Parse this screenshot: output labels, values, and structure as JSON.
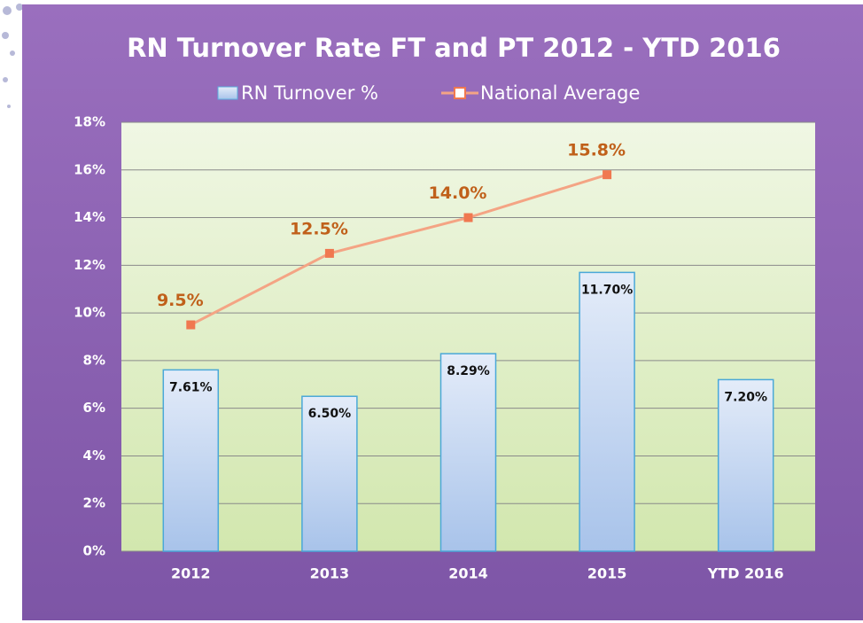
{
  "chart_data": {
    "type": "bar",
    "title": "RN Turnover Rate FT and PT  2012 - YTD 2016",
    "categories": [
      "2012",
      "2013",
      "2014",
      "2015",
      "YTD 2016"
    ],
    "series": [
      {
        "name": "RN  Turnover %",
        "type": "bar",
        "color": "#bcd2ef",
        "values": [
          7.61,
          6.5,
          8.29,
          11.7,
          7.2
        ],
        "value_labels": [
          "7.61%",
          "6.50%",
          "8.29%",
          "11.70%",
          "7.20%"
        ]
      },
      {
        "name": "National Average",
        "type": "line",
        "color": "#f4a484",
        "values": [
          9.5,
          12.5,
          14.0,
          15.8,
          null
        ],
        "value_labels": [
          "9.5%",
          "12.5%",
          "14.0%",
          "15.8%",
          null
        ]
      }
    ],
    "ylim": [
      0,
      18
    ],
    "yticks": [
      {
        "value": 0,
        "label": "0%"
      },
      {
        "value": 2,
        "label": "2%"
      },
      {
        "value": 4,
        "label": "4%"
      },
      {
        "value": 6,
        "label": "6%"
      },
      {
        "value": 8,
        "label": "8%"
      },
      {
        "value": 10,
        "label": "10%"
      },
      {
        "value": 12,
        "label": "12%"
      },
      {
        "value": 14,
        "label": "14%"
      },
      {
        "value": 16,
        "label": "16%"
      },
      {
        "value": 18,
        "label": "18%"
      }
    ],
    "grid": true
  }
}
